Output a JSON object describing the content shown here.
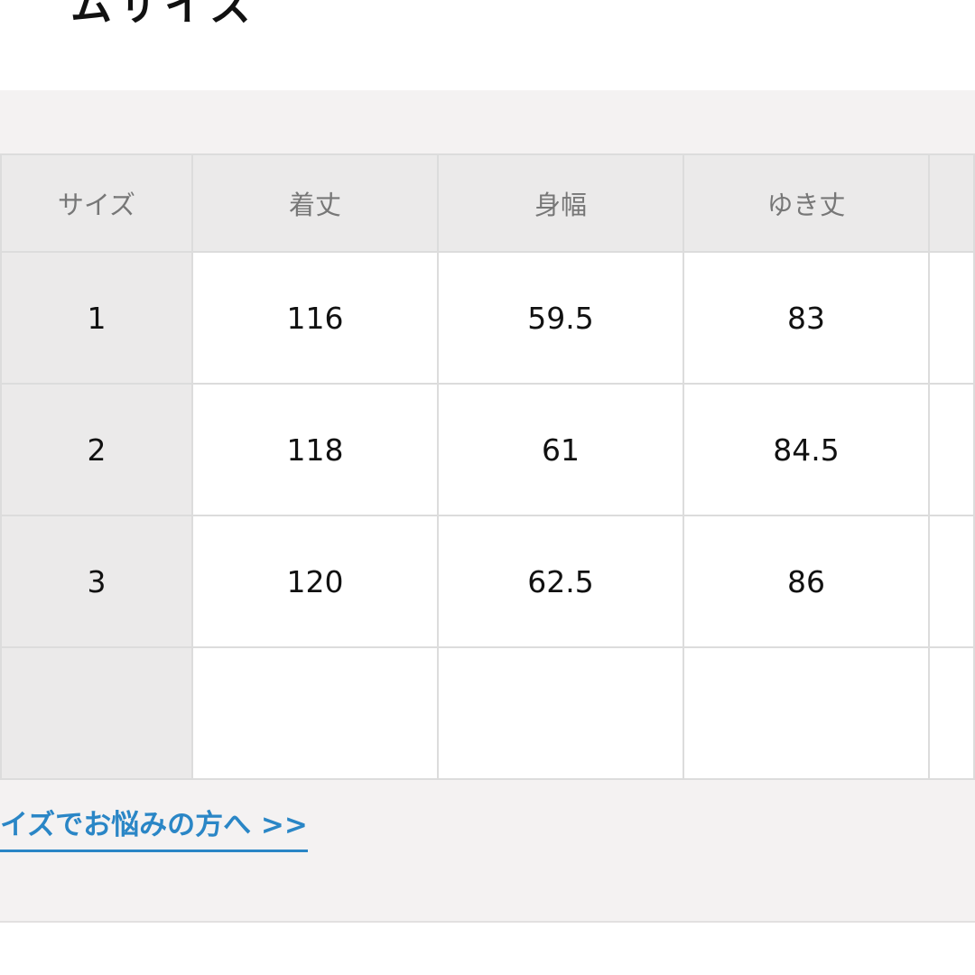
{
  "title": "ムサイズ",
  "table": {
    "headers": [
      "サイズ",
      "着丈",
      "身幅",
      "ゆき丈",
      ""
    ],
    "rows": [
      [
        "1",
        "116",
        "59.5",
        "83",
        ""
      ],
      [
        "2",
        "118",
        "61",
        "84.5",
        ""
      ],
      [
        "3",
        "120",
        "62.5",
        "86",
        ""
      ],
      [
        "",
        "",
        "",
        "",
        ""
      ]
    ]
  },
  "link": "イズでお悩みの方へ >>",
  "colors": {
    "link": "#2a86c6",
    "panel": "#f4f2f2",
    "header": "#ebeaea"
  }
}
